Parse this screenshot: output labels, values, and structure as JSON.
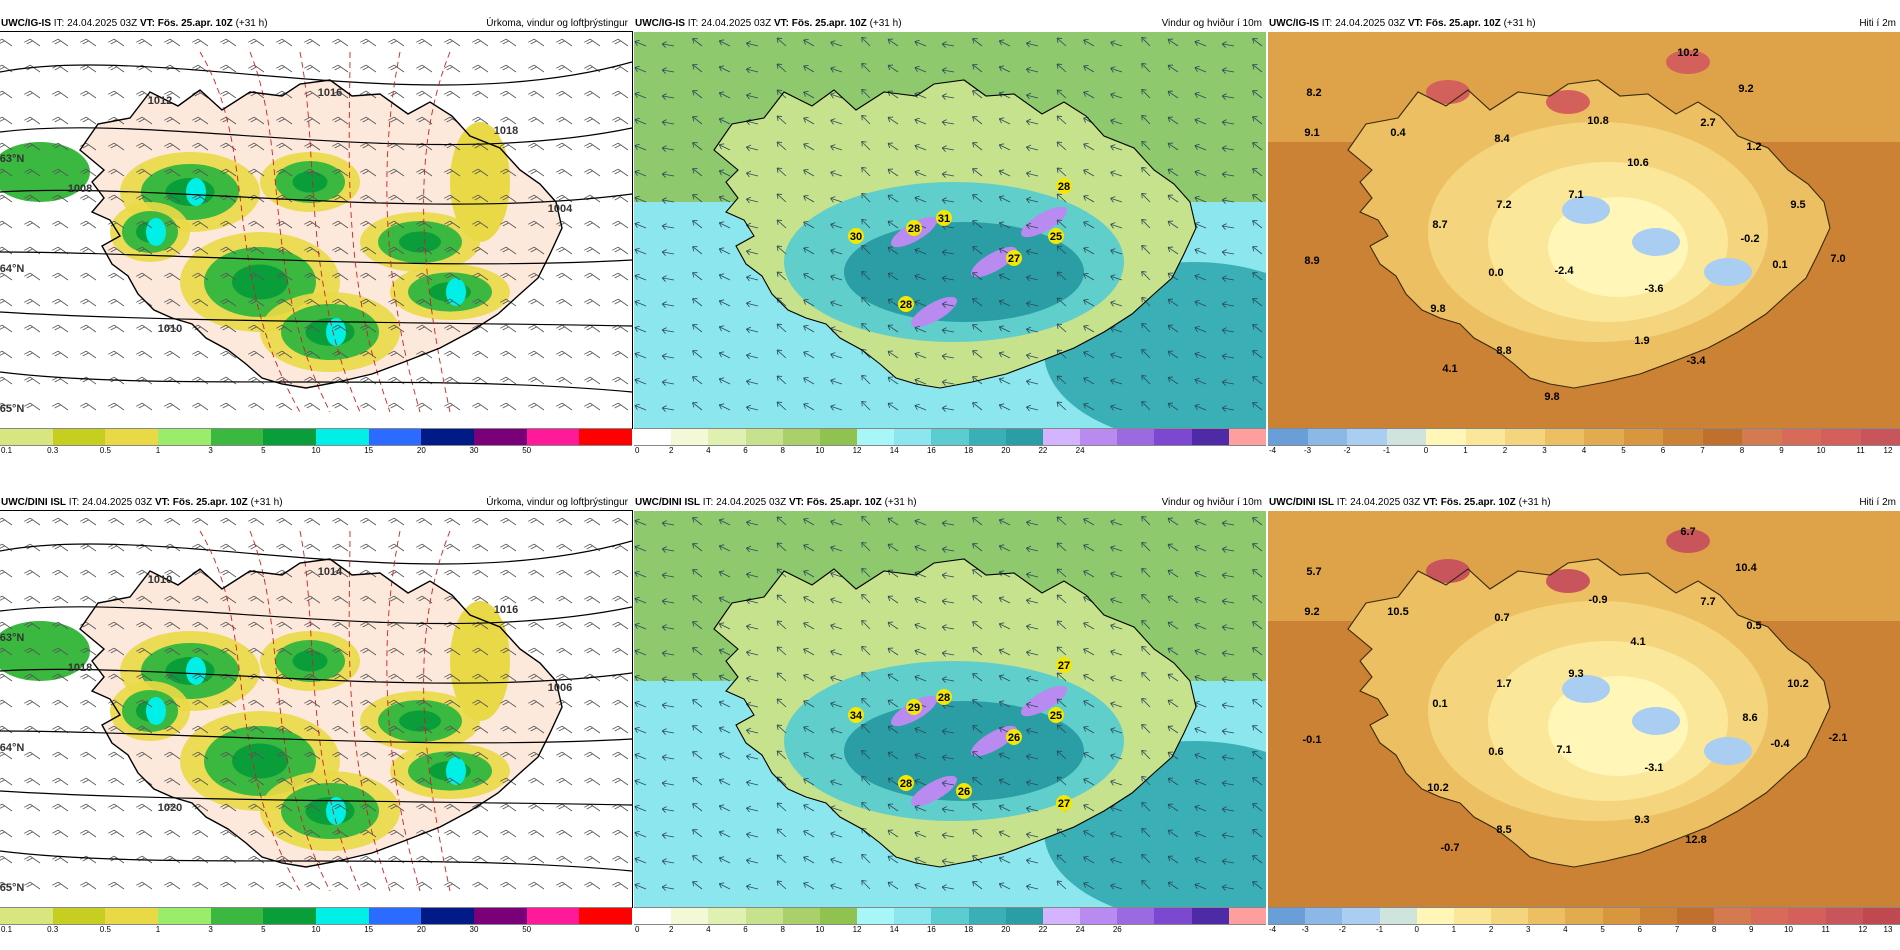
{
  "panels": [
    {
      "id": "p1",
      "model": "UWC/IG-IS",
      "it_label": "IT:",
      "it_value": "24.04.2025 03Z",
      "vt_label": "VT:",
      "vt_value": "Fös. 25.apr. 10Z",
      "lead": "(+31 h)",
      "field": "Úrkoma, vindur og loftþrýstingur",
      "colorbar": {
        "colors": [
          "#d9e680",
          "#c6cf20",
          "#ead946",
          "#9cec6c",
          "#3ab840",
          "#0a9e3a",
          "#00f0e8",
          "#2b6bff",
          "#001a86",
          "#7a007a",
          "#ff1a9a",
          "#ff0000"
        ],
        "labels": [
          "0.1",
          "0.3",
          "0.5",
          "1",
          "3",
          "5",
          "10",
          "15",
          "20",
          "30",
          "50"
        ]
      },
      "map_labels": [
        "1012",
        "1016",
        "1018",
        "1008",
        "1010",
        "1004",
        "63°N",
        "64°N",
        "65°N"
      ]
    },
    {
      "id": "p2",
      "model": "UWC/IG-IS",
      "it_label": "IT:",
      "it_value": "24.04.2025 03Z",
      "vt_label": "VT:",
      "vt_value": "Fös. 25.apr. 10Z",
      "lead": "(+31 h)",
      "field": "Vindur og hviður í 10m",
      "colorbar": {
        "colors": [
          "#ffffff",
          "#f3f9d6",
          "#dff0b0",
          "#c6e28c",
          "#a9d06a",
          "#8fc24e",
          "#a7f7f8",
          "#8ce6ee",
          "#5bcccf",
          "#3ab0b6",
          "#2a9ea4",
          "#d4b4ff",
          "#b98af0",
          "#9b6ae0",
          "#7c48d0",
          "#4e2aa6",
          "#ff9e9e"
        ],
        "labels": [
          "0",
          "2",
          "4",
          "6",
          "8",
          "10",
          "12",
          "14",
          "16",
          "18",
          "20",
          "22",
          "24"
        ]
      },
      "map_labels": [
        "28",
        "30",
        "28",
        "31",
        "27",
        "25",
        "28"
      ]
    },
    {
      "id": "p3",
      "model": "UWC/IG-IS",
      "it_label": "IT:",
      "it_value": "24.04.2025 03Z",
      "vt_label": "VT:",
      "vt_value": "Fös. 25.apr. 10Z",
      "lead": "(+31 h)",
      "field": "Hiti í 2m",
      "colorbar": {
        "colors": [
          "#6a9ed8",
          "#8cb8e8",
          "#aacdf2",
          "#cfe4dc",
          "#fff6b8",
          "#fbe79a",
          "#f4d47c",
          "#ecc062",
          "#e2ab4e",
          "#d8963e",
          "#cc8234",
          "#c0702c",
          "#d47a50",
          "#d86a5a",
          "#d4605c",
          "#c8545c"
        ],
        "labels": [
          "-4",
          "-3",
          "-2",
          "-1",
          "0",
          "1",
          "2",
          "3",
          "4",
          "5",
          "6",
          "7",
          "8",
          "9",
          "10",
          "11",
          "12"
        ]
      },
      "map_labels": [
        "10.2",
        "8.2",
        "9.2",
        "9.1",
        "0.4",
        "8.4",
        "10.8",
        "2.7",
        "1.2",
        "10.6",
        "7.1",
        "7.2",
        "9.5",
        "8.7",
        "-0.2",
        "8.9",
        "0.0",
        "-2.4",
        "0.1",
        "7.0",
        "-3.6",
        "9.8",
        "1.9",
        "8.8",
        "-3.4",
        "4.1",
        "9.8"
      ]
    },
    {
      "id": "p4",
      "model": "UWC/DINI ISL",
      "it_label": "IT:",
      "it_value": "24.04.2025 03Z",
      "vt_label": "VT:",
      "vt_value": "Fös. 25.apr. 10Z",
      "lead": "(+31 h)",
      "field": "Úrkoma, vindur og loftþrýstingur",
      "colorbar": {
        "colors": [
          "#d9e680",
          "#c6cf20",
          "#ead946",
          "#9cec6c",
          "#3ab840",
          "#0a9e3a",
          "#00f0e8",
          "#2b6bff",
          "#001a86",
          "#7a007a",
          "#ff1a9a",
          "#ff0000"
        ],
        "labels": [
          "0.1",
          "0.3",
          "0.5",
          "1",
          "3",
          "5",
          "10",
          "15",
          "20",
          "30",
          "50"
        ]
      },
      "map_labels": [
        "1010",
        "1014",
        "1016",
        "1018",
        "1020",
        "1006",
        "63°N",
        "64°N",
        "65°N"
      ]
    },
    {
      "id": "p5",
      "model": "UWC/DINI ISL",
      "it_label": "IT:",
      "it_value": "24.04.2025 03Z",
      "vt_label": "VT:",
      "vt_value": "Fös. 25.apr. 10Z",
      "lead": "(+31 h)",
      "field": "Vindur og hviður í 10m",
      "colorbar": {
        "colors": [
          "#ffffff",
          "#f3f9d6",
          "#dff0b0",
          "#c6e28c",
          "#a9d06a",
          "#8fc24e",
          "#a7f7f8",
          "#8ce6ee",
          "#5bcccf",
          "#3ab0b6",
          "#2a9ea4",
          "#d4b4ff",
          "#b98af0",
          "#9b6ae0",
          "#7c48d0",
          "#4e2aa6",
          "#ff9e9e"
        ],
        "labels": [
          "0",
          "2",
          "4",
          "6",
          "8",
          "10",
          "12",
          "14",
          "16",
          "18",
          "20",
          "22",
          "24",
          "26"
        ]
      },
      "map_labels": [
        "29",
        "34",
        "28",
        "28",
        "26",
        "25",
        "27",
        "26",
        "27"
      ]
    },
    {
      "id": "p6",
      "model": "UWC/DINI ISL",
      "it_label": "IT:",
      "it_value": "24.04.2025 03Z",
      "vt_label": "VT:",
      "vt_value": "Fös. 25.apr. 10Z",
      "lead": "(+31 h)",
      "field": "Hiti í 2m",
      "colorbar": {
        "colors": [
          "#6a9ed8",
          "#8cb8e8",
          "#aacdf2",
          "#cfe4dc",
          "#fff6b8",
          "#fbe79a",
          "#f4d47c",
          "#ecc062",
          "#e2ab4e",
          "#d8963e",
          "#cc8234",
          "#c0702c",
          "#d47a50",
          "#d86a5a",
          "#d4605c",
          "#c8545c",
          "#c04850"
        ],
        "labels": [
          "-4",
          "-3",
          "-2",
          "-1",
          "0",
          "1",
          "2",
          "3",
          "4",
          "5",
          "6",
          "7",
          "8",
          "9",
          "10",
          "11",
          "12",
          "13"
        ]
      },
      "map_labels": [
        "6.7",
        "5.7",
        "10.4",
        "9.2",
        "10.5",
        "0.7",
        "-0.9",
        "7.7",
        "0.5",
        "4.1",
        "9.3",
        "1.7",
        "10.2",
        "0.1",
        "8.6",
        "-0.1",
        "0.6",
        "7.1",
        "-0.4",
        "-2.1",
        "-3.1",
        "10.2",
        "9.3",
        "8.5",
        "12.8",
        "-0.7"
      ]
    }
  ]
}
